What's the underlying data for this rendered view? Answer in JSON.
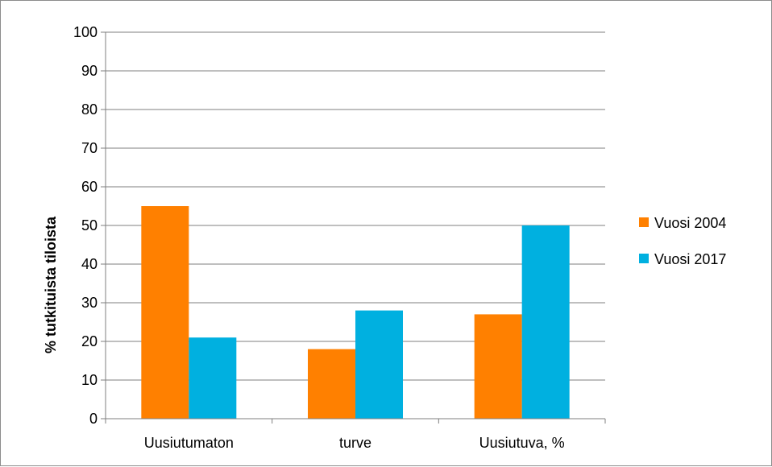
{
  "chart_data": {
    "type": "bar",
    "title": "",
    "xlabel": "",
    "ylabel": "% tutkituista tiloista",
    "categories": [
      "Uusiutumaton",
      "turve",
      "Uusiutuva, %"
    ],
    "series": [
      {
        "name": "Vuosi 2004",
        "values": [
          55,
          18,
          27
        ],
        "color": "#ff8000"
      },
      {
        "name": "Vuosi 2017",
        "values": [
          21,
          28,
          50
        ],
        "color": "#00b0e0"
      }
    ],
    "ylim": [
      0,
      100
    ],
    "yticks": [
      0,
      10,
      20,
      30,
      40,
      50,
      60,
      70,
      80,
      90,
      100
    ],
    "grid": true,
    "gridline_color": "#7f7f7f",
    "legend_position": "right"
  }
}
